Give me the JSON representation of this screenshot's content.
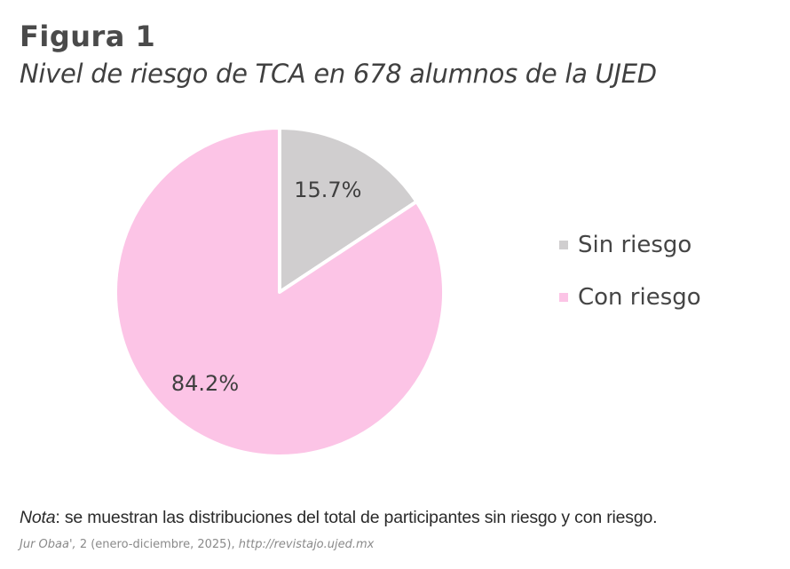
{
  "figure": {
    "label": "Figura 1",
    "title": "Nivel de riesgo de TCA en 678 alumnos de la UJED"
  },
  "chart_data": {
    "type": "pie",
    "title": "Nivel de riesgo de TCA en 678 alumnos de la UJED",
    "categories": [
      "Sin riesgo",
      "Con riesgo"
    ],
    "values": [
      15.7,
      84.2
    ],
    "data_labels": [
      "15.7%",
      "84.2%"
    ],
    "colors": [
      "#d0cecf",
      "#fcc4e6"
    ],
    "start_angle_deg": 0,
    "direction": "clockwise",
    "legend_position": "right"
  },
  "legend": {
    "items": [
      {
        "label": "Sin riesgo",
        "color": "#d0cecf"
      },
      {
        "label": "Con riesgo",
        "color": "#fcc4e6"
      }
    ]
  },
  "note": {
    "label": "Nota",
    "text": ": se muestran las distribuciones del total de participantes sin riesgo y con riesgo."
  },
  "citation": {
    "journal": "Jur Obaa',",
    "details": " 2 (enero-diciembre, 2025), ",
    "url": "http://revistajo.ujed.mx"
  }
}
